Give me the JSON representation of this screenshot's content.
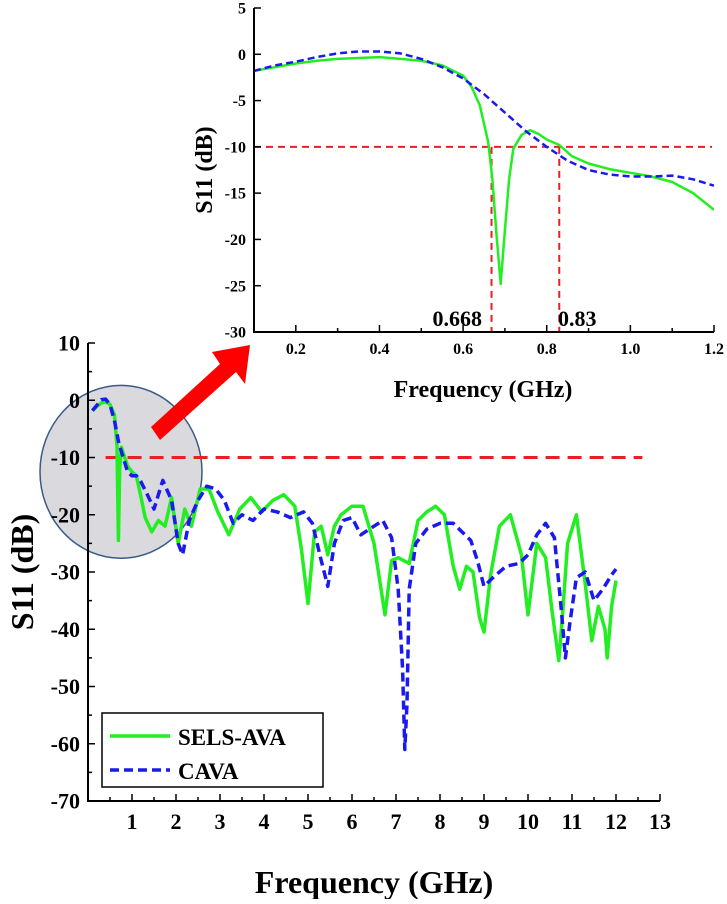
{
  "chart_data": [
    {
      "id": "main",
      "type": "line",
      "xlabel": "Frequency (GHz)",
      "ylabel": "S11 (dB)",
      "xlim": [
        0,
        13
      ],
      "ylim": [
        -70,
        10
      ],
      "xticks": [
        "1",
        "2",
        "3",
        "4",
        "5",
        "6",
        "7",
        "8",
        "9",
        "10",
        "11",
        "12",
        "13"
      ],
      "yticks": [
        "10",
        "0",
        "-10",
        "-20",
        "-30",
        "-40",
        "-50",
        "-60",
        "-70"
      ],
      "threshold": -10,
      "legend": {
        "placement": "bottom-left",
        "entries": [
          "SELS-AVA",
          "CAVA"
        ]
      },
      "colors": {
        "SELS-AVA": "#22ee22",
        "CAVA": "#1a1aee",
        "threshold": "#e82020",
        "arrow": "#ff0000",
        "highlight": "#d9d9de"
      },
      "series": [
        {
          "name": "SELS-AVA",
          "style": "solid",
          "x": [
            0.1,
            0.2,
            0.3,
            0.4,
            0.5,
            0.6,
            0.66,
            0.69,
            0.72,
            0.76,
            0.8,
            0.9,
            1.0,
            1.1,
            1.2,
            1.3,
            1.45,
            1.6,
            1.75,
            1.9,
            2.05,
            2.2,
            2.35,
            2.55,
            2.75,
            2.95,
            3.2,
            3.45,
            3.7,
            3.95,
            4.2,
            4.45,
            4.7,
            4.85,
            5.0,
            5.15,
            5.3,
            5.45,
            5.6,
            5.75,
            6.0,
            6.25,
            6.5,
            6.75,
            6.9,
            7.05,
            7.3,
            7.5,
            7.7,
            7.9,
            8.1,
            8.3,
            8.45,
            8.6,
            8.75,
            8.9,
            9.0,
            9.15,
            9.35,
            9.6,
            9.85,
            10.0,
            10.2,
            10.4,
            10.55,
            10.7,
            10.78,
            10.9,
            11.1,
            11.3,
            11.45,
            11.6,
            11.75,
            11.8,
            11.9,
            12.0
          ],
          "values": [
            -1.8,
            -1.1,
            -0.5,
            -0.3,
            -0.7,
            -2.5,
            -8,
            -24.5,
            -12,
            -8.2,
            -9.2,
            -11.5,
            -12.5,
            -13.2,
            -16.8,
            -20.5,
            -23,
            -21,
            -22,
            -17,
            -25,
            -19,
            -22,
            -15.5,
            -15.5,
            -19.5,
            -23.5,
            -19,
            -17,
            -19.5,
            -17.5,
            -16.5,
            -18.5,
            -26,
            -35.5,
            -23,
            -22,
            -27,
            -22,
            -20,
            -18.5,
            -18.5,
            -25,
            -37.5,
            -28,
            -27.5,
            -28.5,
            -21,
            -19.5,
            -18.5,
            -20,
            -29,
            -33,
            -29,
            -30,
            -38,
            -40.5,
            -30.5,
            -22,
            -20,
            -27,
            -37.5,
            -25,
            -27.5,
            -37,
            -45.5,
            -38,
            -25,
            -20,
            -32,
            -42,
            -36,
            -40,
            -45,
            -36,
            -31.5
          ]
        },
        {
          "name": "CAVA",
          "style": "dashed",
          "x": [
            0.1,
            0.2,
            0.3,
            0.4,
            0.5,
            0.6,
            0.7,
            0.8,
            0.9,
            1.0,
            1.1,
            1.2,
            1.35,
            1.5,
            1.7,
            1.9,
            2.05,
            2.15,
            2.3,
            2.5,
            2.7,
            2.9,
            3.1,
            3.3,
            3.5,
            3.75,
            4.0,
            4.3,
            4.6,
            4.9,
            5.1,
            5.3,
            5.45,
            5.6,
            5.8,
            6.0,
            6.2,
            6.5,
            6.7,
            6.9,
            7.05,
            7.15,
            7.2,
            7.25,
            7.3,
            7.45,
            7.7,
            8.0,
            8.3,
            8.5,
            8.7,
            8.85,
            9.0,
            9.2,
            9.5,
            9.8,
            10.0,
            10.2,
            10.4,
            10.6,
            10.75,
            10.85,
            10.95,
            11.1,
            11.3,
            11.5,
            11.7,
            11.9,
            12.0
          ],
          "values": [
            -1.8,
            -0.9,
            0.1,
            0.2,
            -0.8,
            -3.5,
            -7.5,
            -10,
            -12.5,
            -13.2,
            -13.2,
            -14.2,
            -16.5,
            -19,
            -14,
            -17.5,
            -25,
            -27,
            -21,
            -17.5,
            -15,
            -15.5,
            -17.5,
            -21.5,
            -20,
            -21,
            -19,
            -19.5,
            -20.5,
            -19.5,
            -21.5,
            -28,
            -32.5,
            -25,
            -21,
            -20.5,
            -23.5,
            -22,
            -21,
            -24,
            -33,
            -47,
            -61,
            -53,
            -33,
            -25,
            -22.5,
            -21.5,
            -21.5,
            -23,
            -24.5,
            -28,
            -32.5,
            -31,
            -29,
            -28.5,
            -27,
            -23.5,
            -21.5,
            -24,
            -36,
            -45,
            -39,
            -31,
            -30,
            -35,
            -33,
            -30.5,
            -29.5
          ]
        }
      ]
    },
    {
      "id": "inset",
      "type": "line",
      "xlabel": "Frequency (GHz)",
      "ylabel": "S11 (dB)",
      "xlim": [
        0.1,
        1.2
      ],
      "ylim": [
        -30,
        5
      ],
      "xticks": [
        "0.2",
        "0.4",
        "0.6",
        "0.8",
        "1.0",
        "1.2"
      ],
      "yticks": [
        "5",
        "0",
        "-5",
        "-10",
        "-15",
        "-20",
        "-25",
        "-30"
      ],
      "threshold": -10,
      "annotations": [
        "0.668",
        "0.83"
      ],
      "markers": [
        0.668,
        0.83
      ],
      "series": [
        {
          "name": "SELS-AVA",
          "style": "solid",
          "x": [
            0.1,
            0.15,
            0.2,
            0.25,
            0.3,
            0.35,
            0.4,
            0.45,
            0.5,
            0.55,
            0.6,
            0.62,
            0.64,
            0.66,
            0.67,
            0.68,
            0.69,
            0.7,
            0.71,
            0.72,
            0.74,
            0.76,
            0.78,
            0.8,
            0.83,
            0.86,
            0.9,
            0.95,
            1.0,
            1.05,
            1.1,
            1.15,
            1.2
          ],
          "values": [
            -1.8,
            -1.4,
            -1.0,
            -0.7,
            -0.5,
            -0.4,
            -0.3,
            -0.5,
            -0.7,
            -1.2,
            -2.3,
            -3.5,
            -5.5,
            -9.5,
            -13.5,
            -19.5,
            -24.8,
            -19,
            -13.5,
            -10.2,
            -8.7,
            -8.2,
            -8.6,
            -9.2,
            -9.8,
            -11,
            -11.8,
            -12.4,
            -12.8,
            -13.2,
            -13.8,
            -15,
            -16.8
          ]
        },
        {
          "name": "CAVA",
          "style": "dashed",
          "x": [
            0.1,
            0.15,
            0.2,
            0.25,
            0.3,
            0.35,
            0.4,
            0.45,
            0.5,
            0.55,
            0.6,
            0.65,
            0.7,
            0.75,
            0.8,
            0.85,
            0.9,
            0.95,
            1.0,
            1.05,
            1.1,
            1.15,
            1.2
          ],
          "values": [
            -1.8,
            -1.2,
            -0.8,
            -0.3,
            0.1,
            0.3,
            0.3,
            0.1,
            -0.5,
            -1.4,
            -2.6,
            -4.3,
            -6.3,
            -8.3,
            -10,
            -11.5,
            -12.5,
            -13,
            -13.2,
            -13.2,
            -13.1,
            -13.5,
            -14.2
          ]
        }
      ]
    }
  ]
}
